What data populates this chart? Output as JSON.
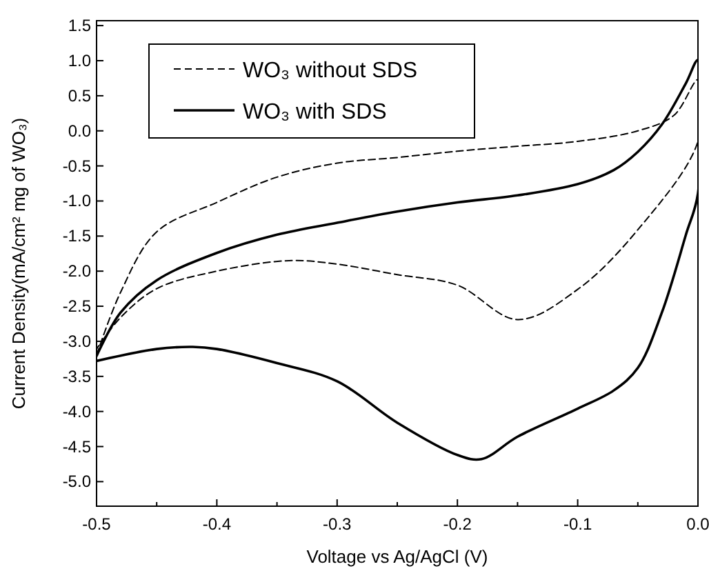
{
  "chart_data": {
    "type": "line",
    "xlabel": "Voltage vs Ag/AgCl (V)",
    "ylabel": "Current Density(mA/cm² mg of WO₃)",
    "xlim": [
      -0.5,
      0
    ],
    "ylim": [
      -5.35,
      1.57
    ],
    "xticks": [
      -0.5,
      {
        "value": -0.45,
        "label": null
      },
      -0.4,
      {
        "value": -0.35,
        "label": null
      },
      -0.3,
      {
        "value": -0.25,
        "label": null
      },
      -0.2,
      {
        "value": -0.15,
        "label": null
      },
      -0.1,
      {
        "value": -0.05,
        "label": null
      },
      {
        "value": 0,
        "label": "0.0"
      }
    ],
    "yticks": [
      {
        "value": 1.5,
        "label": "1.5"
      },
      {
        "value": 1,
        "label": "1.0"
      },
      0.5,
      {
        "value": 0,
        "label": "0.0"
      },
      -0.5,
      {
        "value": -1,
        "label": "-1.0"
      },
      -1.5,
      {
        "value": -2,
        "label": "-2.0"
      },
      -2.5,
      {
        "value": -3,
        "label": "-3.0"
      },
      -3.5,
      {
        "value": -4,
        "label": "-4.0"
      },
      -4.5,
      {
        "value": -5,
        "label": "-5.0"
      }
    ],
    "grid": false,
    "legend": "top left",
    "series": [
      {
        "name": "WO₃ without SDS",
        "color": "#000000",
        "line_style": "dashed",
        "x": [
          -0.5,
          -0.48,
          -0.45,
          -0.4,
          -0.35,
          -0.3,
          -0.25,
          -0.2,
          -0.15,
          -0.1,
          -0.05,
          -0.02,
          0,
          0,
          -0.05,
          -0.1,
          -0.15,
          -0.2,
          -0.25,
          -0.3,
          -0.34,
          -0.4,
          -0.45,
          -0.48,
          -0.5
        ],
        "values": [
          -3.2,
          -2.3,
          -1.44,
          -1.02,
          -0.66,
          -0.46,
          -0.38,
          -0.29,
          -0.22,
          -0.15,
          0.0,
          0.22,
          0.73,
          -0.15,
          -1.41,
          -2.26,
          -2.69,
          -2.2,
          -2.05,
          -1.9,
          -1.85,
          -2.0,
          -2.25,
          -2.66,
          -3.11
        ]
      },
      {
        "name": "WO₃ with SDS",
        "color": "#000000",
        "line_style": "solid",
        "x": [
          -0.5,
          -0.48,
          -0.45,
          -0.4,
          -0.35,
          -0.3,
          -0.25,
          -0.2,
          -0.15,
          -0.1,
          -0.07,
          -0.05,
          -0.03,
          -0.01,
          0,
          0,
          -0.01,
          -0.03,
          -0.05,
          -0.07,
          -0.1,
          -0.15,
          -0.18,
          -0.2,
          -0.25,
          -0.3,
          -0.35,
          -0.4,
          -0.42,
          -0.45,
          -0.5
        ],
        "values": [
          -3.21,
          -2.59,
          -2.13,
          -1.74,
          -1.48,
          -1.31,
          -1.15,
          -1.02,
          -0.92,
          -0.76,
          -0.56,
          -0.3,
          0.09,
          0.68,
          1.01,
          -0.89,
          -1.48,
          -2.59,
          -3.38,
          -3.7,
          -3.96,
          -4.36,
          -4.68,
          -4.62,
          -4.16,
          -3.57,
          -3.31,
          -3.11,
          -3.08,
          -3.11,
          -3.28
        ]
      }
    ]
  }
}
